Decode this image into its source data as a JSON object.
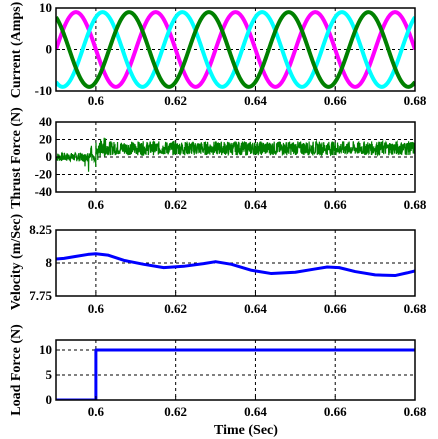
{
  "figure": {
    "xlabel": "Time (Sec)",
    "colors": {
      "axis": "#000000",
      "grid": "#000000"
    }
  },
  "chart_data": [
    {
      "type": "line",
      "ylabel": "Current (Amps)",
      "xlim": [
        0.59,
        0.68
      ],
      "ylim": [
        -10,
        10
      ],
      "xticks": [
        "0.6",
        "0.62",
        "0.64",
        "0.66",
        "0.68"
      ],
      "yticks": [
        "-10",
        "0",
        "10"
      ],
      "xtick_values": [
        0.6,
        0.62,
        0.64,
        0.66,
        0.68
      ],
      "ytick_values": [
        -10,
        0,
        10
      ],
      "grid": true,
      "series": [
        {
          "color": "#ff00ff",
          "amplitude": 9,
          "period": 0.02,
          "phase_deg": 180,
          "x": [
            0.59,
            0.68
          ]
        },
        {
          "color": "#00ffff",
          "amplitude": 9,
          "period": 0.02,
          "phase_deg": 60,
          "x": [
            0.59,
            0.68
          ]
        },
        {
          "color": "#008000",
          "amplitude": 9,
          "period": 0.02,
          "phase_deg": -60,
          "x": [
            0.59,
            0.68
          ]
        }
      ]
    },
    {
      "type": "line",
      "ylabel": "Thrust Force (N)",
      "xlim": [
        0.59,
        0.68
      ],
      "ylim": [
        -40,
        40
      ],
      "xticks": [
        "0.6",
        "0.62",
        "0.64",
        "0.66",
        "0.68"
      ],
      "yticks": [
        "-40",
        "-20",
        "0",
        "20",
        "40"
      ],
      "xtick_values": [
        0.6,
        0.62,
        0.64,
        0.66,
        0.68
      ],
      "ytick_values": [
        -40,
        -20,
        0,
        20,
        40
      ],
      "grid": true,
      "series": [
        {
          "color": "#008000",
          "x": [
            0.59,
            0.6,
            0.6,
            0.68
          ],
          "y": [
            0,
            0,
            10,
            10
          ],
          "noise": [
            5,
            5,
            8,
            8
          ]
        }
      ]
    },
    {
      "type": "line",
      "ylabel": "Velocity (m/Sec)",
      "xlim": [
        0.59,
        0.68
      ],
      "ylim": [
        7.75,
        8.25
      ],
      "xticks": [
        "0.6",
        "0.62",
        "0.64",
        "0.66",
        "0.68"
      ],
      "yticks": [
        "7.75",
        "8",
        "8.25"
      ],
      "xtick_values": [
        0.6,
        0.62,
        0.64,
        0.66,
        0.68
      ],
      "ytick_values": [
        7.75,
        8,
        8.25
      ],
      "grid": true,
      "series": [
        {
          "color": "#0000ff",
          "x": [
            0.59,
            0.592,
            0.595,
            0.598,
            0.6,
            0.603,
            0.607,
            0.612,
            0.617,
            0.622,
            0.627,
            0.63,
            0.634,
            0.639,
            0.644,
            0.65,
            0.655,
            0.658,
            0.661,
            0.665,
            0.67,
            0.675,
            0.678,
            0.68
          ],
          "y": [
            8.03,
            8.035,
            8.05,
            8.065,
            8.07,
            8.06,
            8.02,
            7.99,
            7.965,
            7.975,
            7.995,
            8.01,
            7.99,
            7.945,
            7.92,
            7.93,
            7.955,
            7.97,
            7.965,
            7.935,
            7.91,
            7.905,
            7.925,
            7.94
          ]
        }
      ]
    },
    {
      "type": "line",
      "ylabel": "Load Force (N)",
      "xlabel": "Time (Sec)",
      "xlim": [
        0.59,
        0.68
      ],
      "ylim": [
        0,
        12
      ],
      "xticks": [
        "0.6",
        "0.62",
        "0.64",
        "0.66",
        "0.68"
      ],
      "yticks": [
        "0",
        "5",
        "10"
      ],
      "xtick_values": [
        0.6,
        0.62,
        0.64,
        0.66,
        0.68
      ],
      "ytick_values": [
        0,
        5,
        10
      ],
      "grid": true,
      "series": [
        {
          "color": "#0000ff",
          "x": [
            0.59,
            0.6,
            0.6,
            0.68
          ],
          "y": [
            0,
            0,
            10,
            10
          ]
        }
      ]
    }
  ]
}
